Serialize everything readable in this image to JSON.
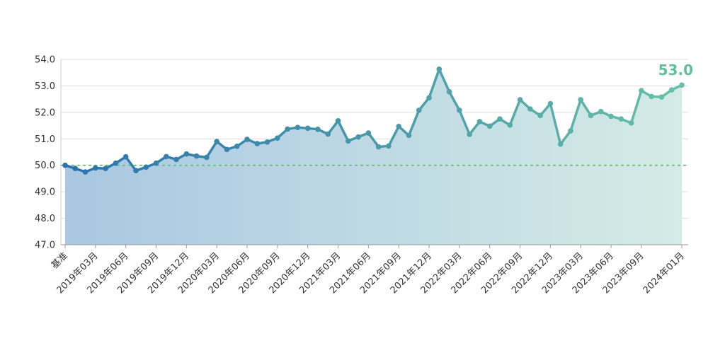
{
  "chart_data": {
    "type": "line",
    "title": "",
    "xlabel": "",
    "ylabel": "",
    "ylim": [
      47.0,
      54.0
    ],
    "yticks": [
      "47.0",
      "48.0",
      "49.0",
      "50.0",
      "51.0",
      "52.0",
      "53.0",
      "54.0"
    ],
    "baseline": 50.0,
    "grid": "horizontal",
    "legend": "none",
    "x_ticks": [
      {
        "index": 0,
        "label": "基准"
      },
      {
        "index": 3,
        "label": "2019年03月"
      },
      {
        "index": 6,
        "label": "2019年06月"
      },
      {
        "index": 9,
        "label": "2019年09月"
      },
      {
        "index": 12,
        "label": "2019年12月"
      },
      {
        "index": 15,
        "label": "2020年03月"
      },
      {
        "index": 18,
        "label": "2020年06月"
      },
      {
        "index": 21,
        "label": "2020年09月"
      },
      {
        "index": 24,
        "label": "2020年12月"
      },
      {
        "index": 27,
        "label": "2021年03月"
      },
      {
        "index": 30,
        "label": "2021年06月"
      },
      {
        "index": 33,
        "label": "2021年09月"
      },
      {
        "index": 36,
        "label": "2021年12月"
      },
      {
        "index": 39,
        "label": "2022年03月"
      },
      {
        "index": 42,
        "label": "2022年06月"
      },
      {
        "index": 45,
        "label": "2022年09月"
      },
      {
        "index": 48,
        "label": "2022年12月"
      },
      {
        "index": 51,
        "label": "2023年03月"
      },
      {
        "index": 54,
        "label": "2023年06月"
      },
      {
        "index": 57,
        "label": "2023年09月"
      },
      {
        "index": 61,
        "label": "2024年01月"
      }
    ],
    "series": [
      {
        "values": [
          50.0,
          49.88,
          49.75,
          49.9,
          49.88,
          50.08,
          50.32,
          49.8,
          49.93,
          50.08,
          50.33,
          50.22,
          50.43,
          50.35,
          50.3,
          50.9,
          50.6,
          50.72,
          50.98,
          50.82,
          50.88,
          51.03,
          51.37,
          51.43,
          51.4,
          51.36,
          51.18,
          51.68,
          50.92,
          51.07,
          51.22,
          50.7,
          50.73,
          51.47,
          51.13,
          52.08,
          52.55,
          53.63,
          52.78,
          52.08,
          51.17,
          51.65,
          51.48,
          51.75,
          51.52,
          52.48,
          52.13,
          51.88,
          52.33,
          50.8,
          51.3,
          52.48,
          51.88,
          52.03,
          51.85,
          51.75,
          51.6,
          52.82,
          52.6,
          52.58,
          52.85,
          53.03
        ]
      }
    ],
    "last_value_label": "53.0",
    "colors": {
      "line_start": "#2b72ae",
      "line_end": "#66c0a6",
      "area_start": "#a9c7e2",
      "area_end": "#d4ebe6",
      "baseline": "#6abf73",
      "grid": "#dddddd",
      "label": "#5fbf9a"
    }
  }
}
